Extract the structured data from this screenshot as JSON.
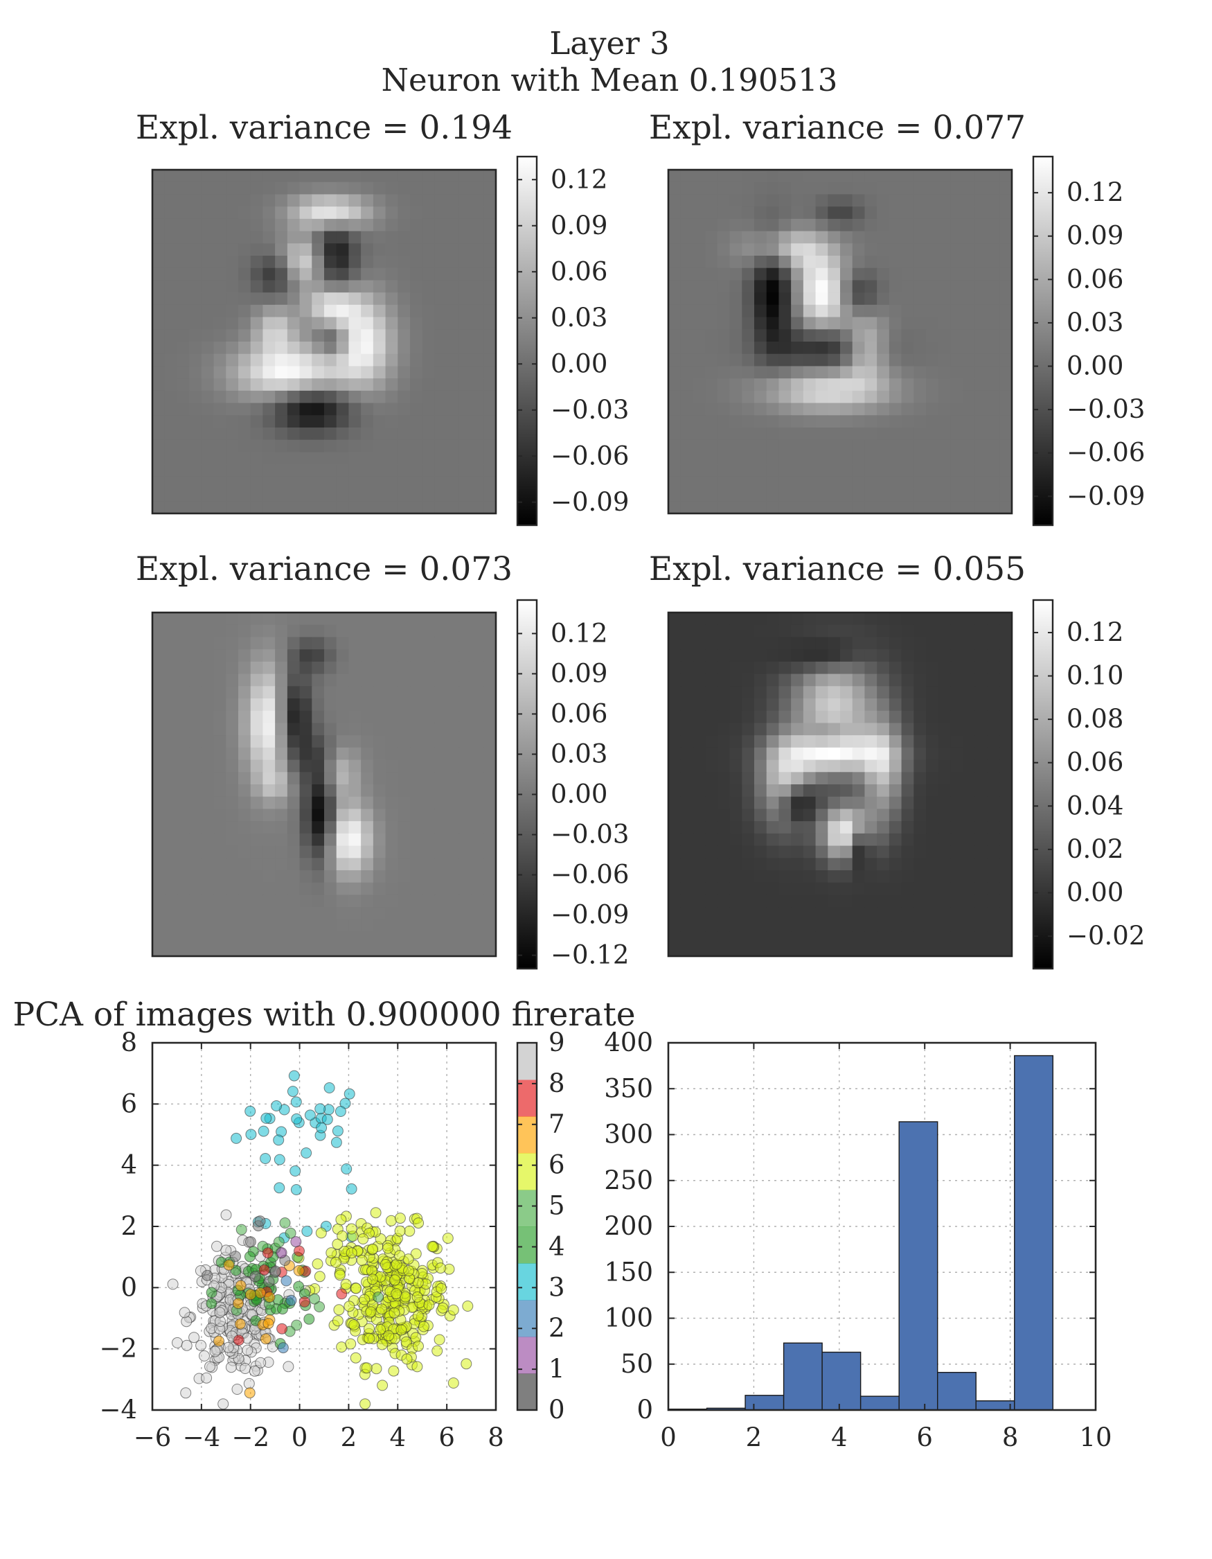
{
  "figure": {
    "title_line1": "Layer 3",
    "title_line2": "Neuron with Mean 0.190513"
  },
  "colors": {
    "text": "#262626",
    "bar_fill": "#4c72b0",
    "frame": "#262626"
  },
  "chart_data": [
    {
      "type": "heatmap",
      "title": "Expl. variance = 0.194",
      "colormap": "gray",
      "background_level": 0.45,
      "colorbar_ticks": [
        "0.12",
        "0.09",
        "0.06",
        "0.03",
        "0.00",
        "−0.03",
        "−0.06",
        "−0.09"
      ],
      "colorbar_range": [
        -0.105,
        0.135
      ],
      "blobs": [
        {
          "x": 14.5,
          "y": 3.5,
          "rx": 2.2,
          "ry": 1.0,
          "v": 0.95
        },
        {
          "x": 12.5,
          "y": 7.5,
          "rx": 1.6,
          "ry": 1.4,
          "v": 0.8
        },
        {
          "x": 14.8,
          "y": 7.0,
          "rx": 1.2,
          "ry": 1.9,
          "v": -0.95
        },
        {
          "x": 10.0,
          "y": 8.5,
          "rx": 1.2,
          "ry": 1.2,
          "v": -0.6
        },
        {
          "x": 11.0,
          "y": 16.5,
          "rx": 3.0,
          "ry": 1.6,
          "v": 1.0
        },
        {
          "x": 17.0,
          "y": 14.0,
          "rx": 1.8,
          "ry": 2.6,
          "v": 0.95
        },
        {
          "x": 14.5,
          "y": 11.0,
          "rx": 1.5,
          "ry": 1.1,
          "v": 0.75
        },
        {
          "x": 14.8,
          "y": 14.0,
          "rx": 1.0,
          "ry": 1.0,
          "v": -0.6
        },
        {
          "x": 13.0,
          "y": 19.5,
          "rx": 2.2,
          "ry": 1.3,
          "v": -0.95
        },
        {
          "x": 10.0,
          "y": 13.0,
          "rx": 1.2,
          "ry": 1.3,
          "v": 0.6
        }
      ]
    },
    {
      "type": "heatmap",
      "title": "Expl. variance = 0.077",
      "colormap": "gray",
      "background_level": 0.45,
      "colorbar_ticks": [
        "0.12",
        "0.09",
        "0.06",
        "0.03",
        "0.00",
        "−0.03",
        "−0.06",
        "−0.09"
      ],
      "colorbar_range": [
        -0.11,
        0.145
      ],
      "blobs": [
        {
          "x": 9.5,
          "y": 6.5,
          "rx": 2.2,
          "ry": 1.2,
          "v": 0.8
        },
        {
          "x": 8.5,
          "y": 10.0,
          "rx": 1.2,
          "ry": 3.2,
          "v": -1.0
        },
        {
          "x": 12.5,
          "y": 10.0,
          "rx": 1.5,
          "ry": 2.2,
          "v": 1.0
        },
        {
          "x": 13.0,
          "y": 14.5,
          "rx": 3.0,
          "ry": 1.2,
          "v": -0.7
        },
        {
          "x": 16.0,
          "y": 14.5,
          "rx": 1.3,
          "ry": 1.8,
          "v": 0.8
        },
        {
          "x": 13.0,
          "y": 18.0,
          "rx": 3.5,
          "ry": 1.2,
          "v": 0.75
        },
        {
          "x": 14.0,
          "y": 3.5,
          "rx": 1.3,
          "ry": 0.8,
          "v": -0.4
        },
        {
          "x": 15.5,
          "y": 10.0,
          "rx": 1.1,
          "ry": 1.2,
          "v": -0.5
        }
      ]
    },
    {
      "type": "heatmap",
      "title": "Expl. variance = 0.073",
      "colormap": "gray",
      "background_level": 0.48,
      "colorbar_ticks": [
        "0.12",
        "0.09",
        "0.06",
        "0.03",
        "0.00",
        "−0.03",
        "−0.06",
        "−0.09",
        "−0.12"
      ],
      "colorbar_range": [
        -0.13,
        0.145
      ],
      "blobs": [
        {
          "x": 9.5,
          "y": 9.0,
          "rx": 1.3,
          "ry": 3.3,
          "v": 1.0
        },
        {
          "x": 11.5,
          "y": 8.5,
          "rx": 1.0,
          "ry": 2.5,
          "v": -0.95
        },
        {
          "x": 13.0,
          "y": 3.5,
          "rx": 1.2,
          "ry": 1.0,
          "v": -0.45
        },
        {
          "x": 13.5,
          "y": 12.0,
          "rx": 1.2,
          "ry": 1.5,
          "v": -0.45
        },
        {
          "x": 15.0,
          "y": 13.0,
          "rx": 1.2,
          "ry": 1.5,
          "v": 0.6
        },
        {
          "x": 16.0,
          "y": 18.5,
          "rx": 1.3,
          "ry": 2.0,
          "v": 1.0
        },
        {
          "x": 13.7,
          "y": 16.5,
          "rx": 0.9,
          "ry": 2.6,
          "v": -1.0
        },
        {
          "x": 10.0,
          "y": 14.0,
          "rx": 1.0,
          "ry": 1.0,
          "v": 0.35
        }
      ]
    },
    {
      "type": "heatmap",
      "title": "Expl. variance = 0.055",
      "colormap": "gray",
      "background_level": 0.22,
      "colorbar_ticks": [
        "0.12",
        "0.10",
        "0.08",
        "0.06",
        "0.04",
        "0.02",
        "0.00",
        "−0.02"
      ],
      "colorbar_range": [
        -0.035,
        0.135
      ],
      "blobs": [
        {
          "x": 13.5,
          "y": 7.5,
          "rx": 2.5,
          "ry": 2.8,
          "v": 0.75
        },
        {
          "x": 13.5,
          "y": 11.5,
          "rx": 3.0,
          "ry": 1.2,
          "v": 0.75
        },
        {
          "x": 9.5,
          "y": 14.0,
          "rx": 1.5,
          "ry": 2.5,
          "v": 0.7
        },
        {
          "x": 14.5,
          "y": 18.0,
          "rx": 1.4,
          "ry": 1.6,
          "v": 1.0
        },
        {
          "x": 17.5,
          "y": 13.0,
          "rx": 1.2,
          "ry": 3.0,
          "v": 0.6
        },
        {
          "x": 10.5,
          "y": 15.5,
          "rx": 1.0,
          "ry": 1.0,
          "v": -0.6
        },
        {
          "x": 15.5,
          "y": 19.0,
          "rx": 0.7,
          "ry": 1.2,
          "v": -0.6
        },
        {
          "x": 13.0,
          "y": 10.0,
          "rx": 1.2,
          "ry": 0.7,
          "v": -0.3
        },
        {
          "x": 12.5,
          "y": 3.5,
          "rx": 2.0,
          "ry": 0.9,
          "v": -0.35
        }
      ]
    },
    {
      "type": "scatter",
      "title": "PCA of images with 0.900000 firerate",
      "xlim": [
        -6,
        8
      ],
      "ylim": [
        -4,
        8
      ],
      "xticks": [
        -6,
        -4,
        -2,
        0,
        2,
        4,
        6,
        8
      ],
      "yticks": [
        -4,
        -2,
        0,
        2,
        4,
        6,
        8
      ],
      "grid": true,
      "colorbar_ticks": [
        0,
        1,
        2,
        3,
        4,
        5,
        6,
        7,
        8,
        9
      ],
      "colormap": "Set1 (alpha 0.5)",
      "class_colors": [
        "#7f7f7f",
        "#984ea3",
        "#377eb8",
        "#17becf",
        "#2ca02c",
        "#4daf4a",
        "#d9f21a",
        "#ffa500",
        "#e41a1c",
        "#d3d3d3"
      ],
      "clusters": [
        {
          "class": 3,
          "n": 35,
          "cx": 0.3,
          "cy": 5.3,
          "sx": 1.4,
          "sy": 0.8
        },
        {
          "class": 3,
          "n": 8,
          "cx": 0.5,
          "cy": 2.2,
          "sx": 1.1,
          "sy": 0.7
        },
        {
          "class": 6,
          "n": 280,
          "cx": 3.8,
          "cy": -0.3,
          "sx": 1.1,
          "sy": 1.1
        },
        {
          "class": 6,
          "n": 30,
          "cx": 2.0,
          "cy": 1.2,
          "sx": 0.8,
          "sy": 0.7
        },
        {
          "class": 9,
          "n": 230,
          "cx": -2.6,
          "cy": -0.9,
          "sx": 0.9,
          "sy": 1.0
        },
        {
          "class": 4,
          "n": 45,
          "cx": -1.5,
          "cy": -0.2,
          "sx": 1.0,
          "sy": 0.9
        },
        {
          "class": 5,
          "n": 14,
          "cx": 0.0,
          "cy": 0.5,
          "sx": 1.5,
          "sy": 1.3
        },
        {
          "class": 8,
          "n": 10,
          "cx": -0.5,
          "cy": 0.2,
          "sx": 1.4,
          "sy": 1.2
        },
        {
          "class": 7,
          "n": 15,
          "cx": -1.8,
          "cy": -0.3,
          "sx": 1.2,
          "sy": 1.1
        },
        {
          "class": 2,
          "n": 3,
          "cx": 1.5,
          "cy": 0.0,
          "sx": 1.8,
          "sy": 1.2
        },
        {
          "class": 0,
          "n": 10,
          "cx": -1.5,
          "cy": 0.3,
          "sx": 1.2,
          "sy": 1.0
        },
        {
          "class": 1,
          "n": 2,
          "cx": -0.9,
          "cy": 1.5,
          "sx": 0.6,
          "sy": 0.6
        }
      ]
    },
    {
      "type": "bar",
      "title": "",
      "xlim": [
        0,
        10
      ],
      "ylim": [
        0,
        400
      ],
      "xticks": [
        0,
        2,
        4,
        6,
        8,
        10
      ],
      "yticks": [
        0,
        50,
        100,
        150,
        200,
        250,
        300,
        350,
        400
      ],
      "grid": true,
      "bin_edges": [
        0,
        0.9,
        1.8,
        2.7,
        3.6,
        4.5,
        5.4,
        6.3,
        7.2,
        8.1,
        9.0
      ],
      "values": [
        1,
        2,
        16,
        73,
        63,
        15,
        314,
        41,
        10,
        386
      ]
    }
  ]
}
